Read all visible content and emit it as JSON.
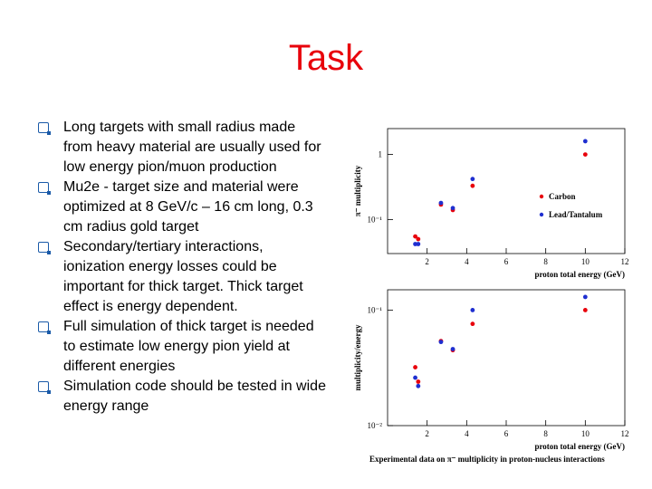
{
  "slide": {
    "title": "Task",
    "bullets": [
      "Long targets with small radius made from heavy material are usually used for low energy pion/muon production",
      "Mu2e - target size and material were optimized at 8 GeV/c – 16 cm long, 0.3 cm radius gold target",
      "Secondary/tertiary interactions, ionization energy losses could be important for thick target. Thick target effect is energy dependent.",
      "Full simulation of thick target is needed to estimate low energy pion yield at different energies",
      "Simulation code should be tested in wide energy range"
    ],
    "figure_caption": "Experimental data on π⁻ multiplicity in proton-nucleus interactions"
  },
  "colors": {
    "title": "#e8000b",
    "carbon": "#e8000b",
    "lead": "#1f2fd0",
    "bullet_marker": "#1a5aa8"
  },
  "chart_data": [
    {
      "type": "scatter",
      "xlabel": "proton total energy (GeV)",
      "ylabel": "π⁻ multiplicity",
      "xlim": [
        0,
        12
      ],
      "yscale": "log",
      "ylim": [
        0.03,
        2.5
      ],
      "x_ticks": [
        2,
        4,
        6,
        8,
        10,
        12
      ],
      "y_ticks": [
        {
          "value": 1,
          "label": "1"
        },
        {
          "value": 0.1,
          "label": "10⁻¹"
        }
      ],
      "legend": "right",
      "series": [
        {
          "name": "Carbon",
          "color": "#e8000b",
          "points": [
            [
              1.4,
              0.055
            ],
            [
              1.55,
              0.05
            ],
            [
              2.7,
              0.17
            ],
            [
              3.3,
              0.14
            ],
            [
              4.3,
              0.33
            ],
            [
              10,
              1.0
            ]
          ]
        },
        {
          "name": "Lead/Tantalum",
          "color": "#1f2fd0",
          "points": [
            [
              1.4,
              0.042
            ],
            [
              1.55,
              0.042
            ],
            [
              2.7,
              0.18
            ],
            [
              3.3,
              0.15
            ],
            [
              4.3,
              0.42
            ],
            [
              10,
              1.6
            ]
          ]
        }
      ]
    },
    {
      "type": "scatter",
      "xlabel": "proton total energy (GeV)",
      "ylabel": "multiplicity/energy",
      "xlim": [
        0,
        12
      ],
      "yscale": "log",
      "ylim": [
        0.01,
        0.15
      ],
      "x_ticks": [
        2,
        4,
        6,
        8,
        10,
        12
      ],
      "y_ticks": [
        {
          "value": 0.1,
          "label": "10⁻¹"
        },
        {
          "value": 0.01,
          "label": "10⁻²"
        }
      ],
      "series": [
        {
          "name": "Carbon",
          "color": "#e8000b",
          "points": [
            [
              1.4,
              0.032
            ],
            [
              1.55,
              0.024
            ],
            [
              2.7,
              0.054
            ],
            [
              3.3,
              0.045
            ],
            [
              4.3,
              0.076
            ],
            [
              10,
              0.1
            ]
          ]
        },
        {
          "name": "Lead/Tantalum",
          "color": "#1f2fd0",
          "points": [
            [
              1.4,
              0.026
            ],
            [
              1.55,
              0.022
            ],
            [
              2.7,
              0.053
            ],
            [
              3.3,
              0.046
            ],
            [
              4.3,
              0.1
            ],
            [
              10,
              0.13
            ]
          ]
        }
      ]
    }
  ]
}
